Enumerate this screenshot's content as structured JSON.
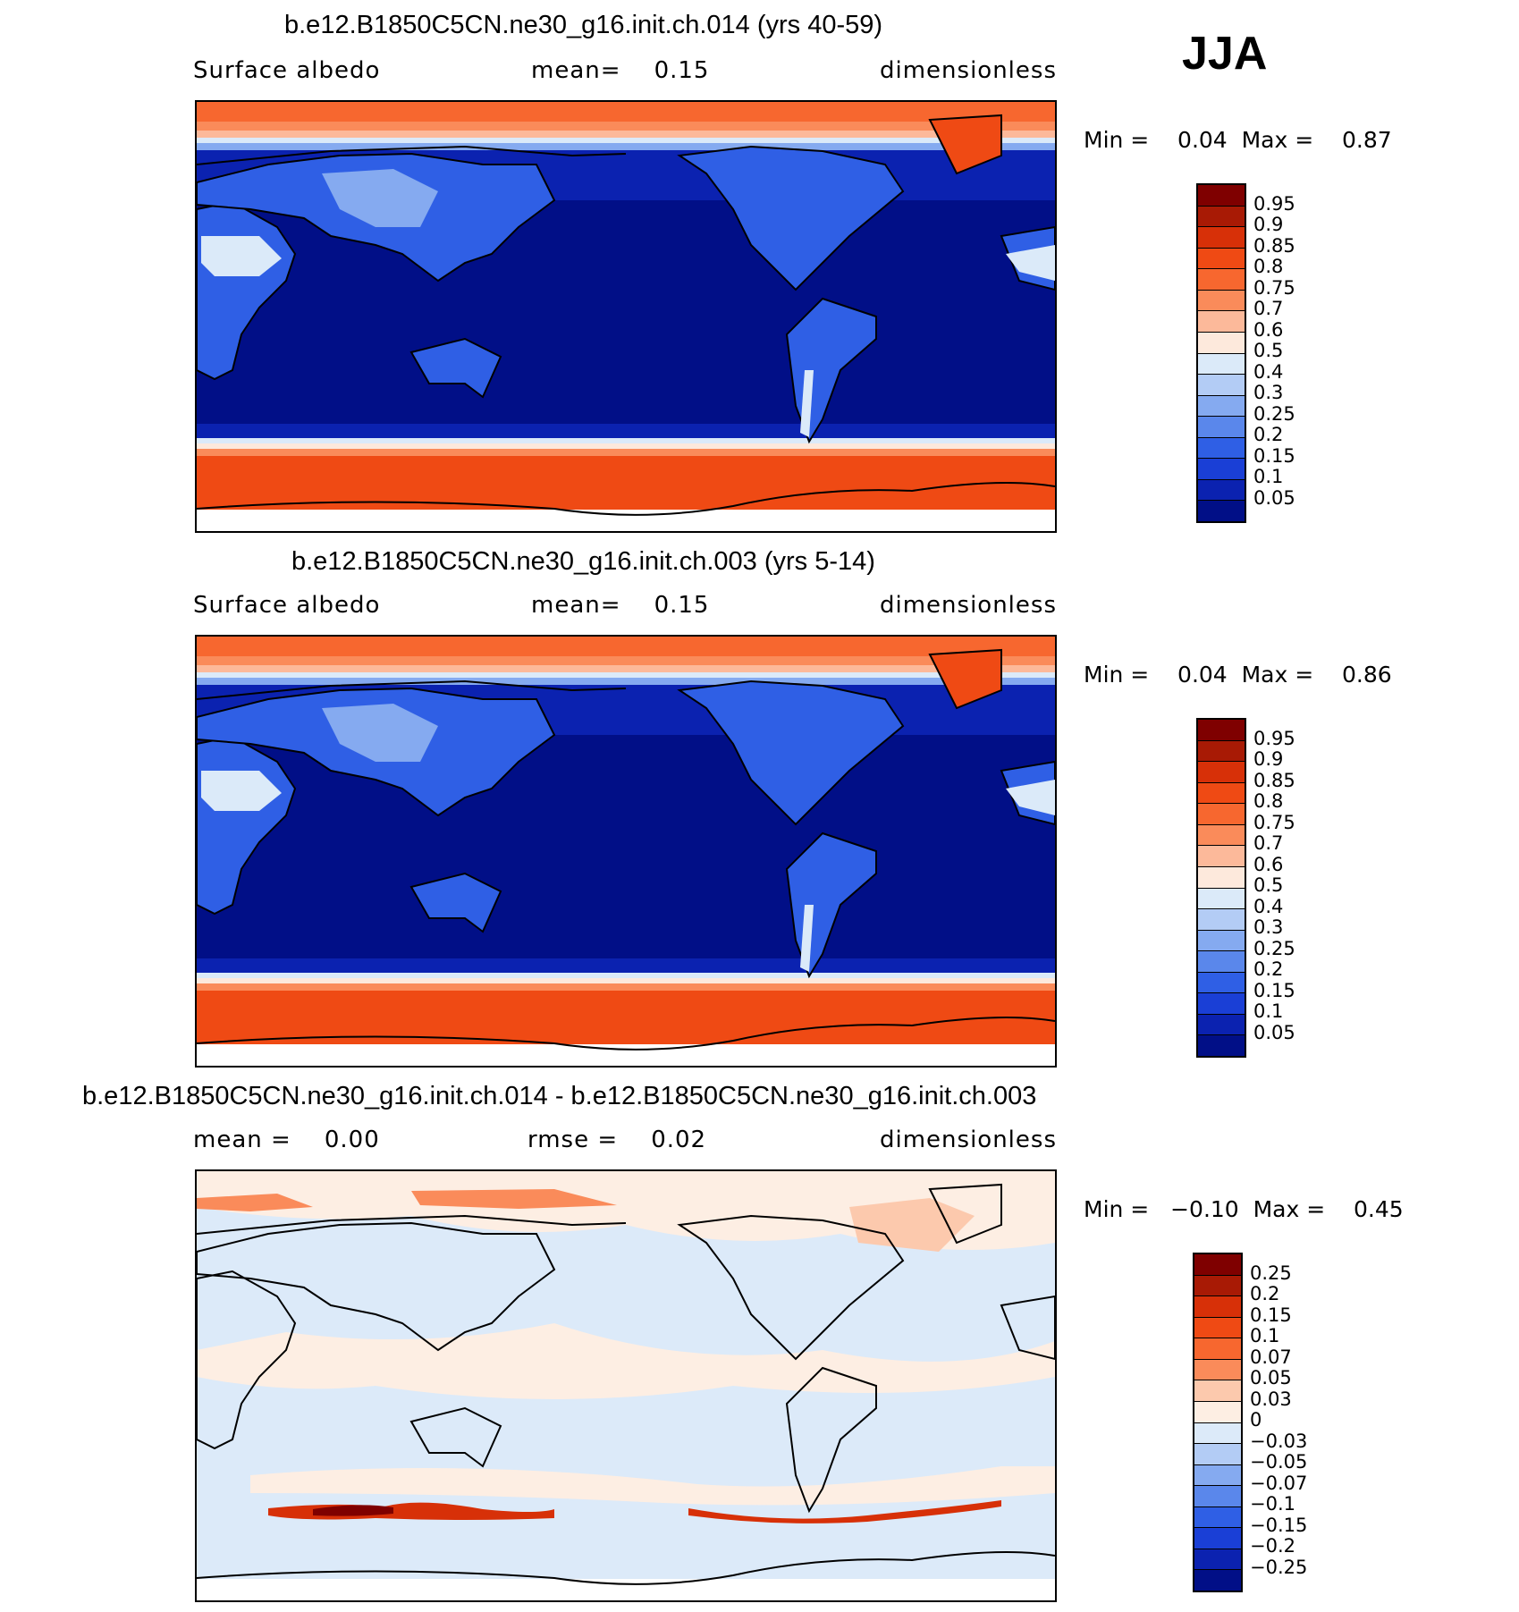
{
  "season": "JJA",
  "panels": [
    {
      "title": "b.e12.B1850C5CN.ne30_g16.init.ch.014 (yrs 40-59)",
      "left_text": "Surface albedo",
      "center_text": "mean=    0.15",
      "right_text": "dimensionless",
      "minmax": "Min =    0.04  Max =    0.87",
      "type": "absolute"
    },
    {
      "title": "b.e12.B1850C5CN.ne30_g16.init.ch.003 (yrs 5-14)",
      "left_text": "Surface albedo",
      "center_text": "mean=    0.15",
      "right_text": "dimensionless",
      "minmax": "Min =    0.04  Max =    0.86",
      "type": "absolute"
    },
    {
      "title": "b.e12.B1850C5CN.ne30_g16.init.ch.014 - b.e12.B1850C5CN.ne30_g16.init.ch.003",
      "left_text": "mean =    0.00",
      "center_text": "rmse =    0.02",
      "right_text": "dimensionless",
      "minmax": "Min =   −0.10  Max =    0.45",
      "type": "difference"
    }
  ],
  "colorbar_abs": {
    "labels": [
      "0.95",
      "0.9",
      "0.85",
      "0.8",
      "0.75",
      "0.7",
      "0.6",
      "0.5",
      "0.4",
      "0.3",
      "0.25",
      "0.2",
      "0.15",
      "0.1",
      "0.05"
    ],
    "colors": [
      "#7f0000",
      "#a81a05",
      "#d73008",
      "#ef4a14",
      "#f7672f",
      "#fa8b5a",
      "#fcb99a",
      "#fde9dc",
      "#dbeaf9",
      "#b3ccf5",
      "#85aaf0",
      "#5a87eb",
      "#2f5fe5",
      "#1a3fd6",
      "#0b22b0",
      "#010f87"
    ]
  },
  "colorbar_diff": {
    "labels": [
      "0.25",
      "0.2",
      "0.15",
      "0.1",
      "0.07",
      "0.05",
      "0.03",
      "0",
      "−0.03",
      "−0.05",
      "−0.07",
      "−0.1",
      "−0.15",
      "−0.2",
      "−0.25"
    ],
    "colors": [
      "#7f0000",
      "#a81a05",
      "#d73008",
      "#ef4a14",
      "#f7672f",
      "#fa8b5a",
      "#fcc9ad",
      "#fdeee3",
      "#dceaf9",
      "#b3ccf5",
      "#85aaf0",
      "#5a87eb",
      "#2f5fe5",
      "#1a3fd6",
      "#0b22b0",
      "#010f87"
    ]
  }
}
